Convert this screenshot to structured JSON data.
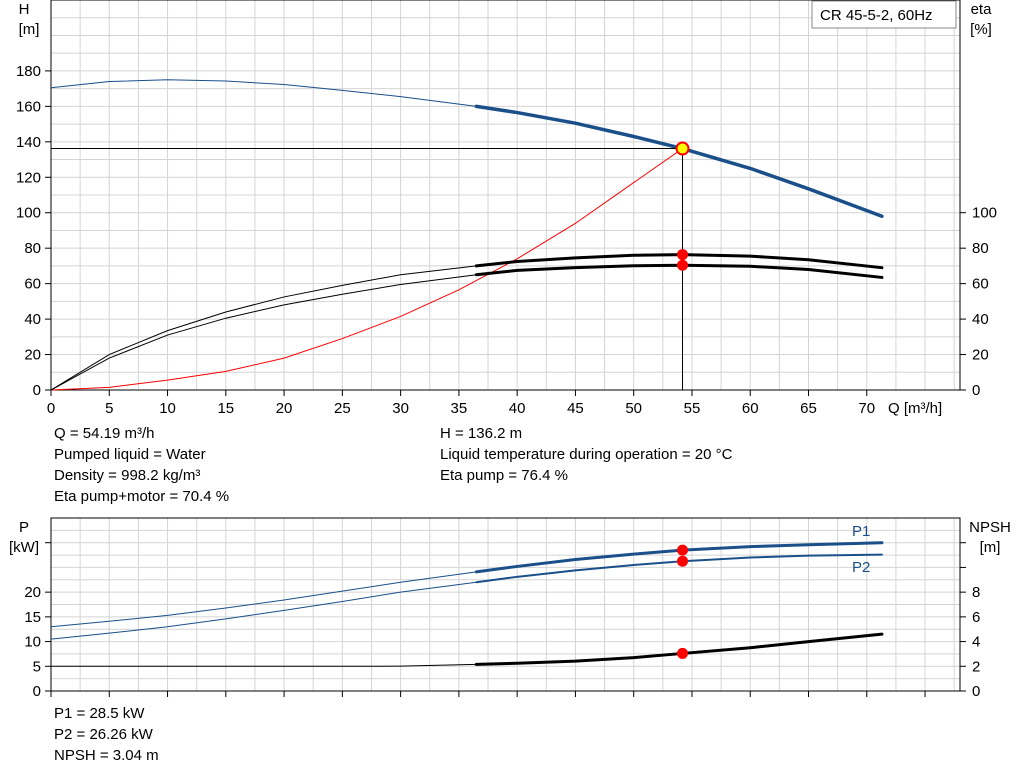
{
  "chart_data": [
    {
      "type": "line",
      "title_box": "CR 45-5-2, 60Hz",
      "x_axis": {
        "label": "Q [m³/h]",
        "ticks": [
          0,
          5,
          10,
          15,
          20,
          25,
          30,
          35,
          40,
          45,
          50,
          55,
          60,
          65,
          70
        ],
        "range": [
          0,
          78
        ]
      },
      "y_left": {
        "label_top": "H",
        "label_unit": "[m]",
        "ticks": [
          0,
          20,
          40,
          60,
          80,
          100,
          120,
          140,
          160,
          180
        ],
        "range": [
          0,
          220
        ]
      },
      "y_right": {
        "label_top": "eta",
        "label_unit": "[%]",
        "ticks": [
          0,
          20,
          40,
          60,
          80,
          100
        ],
        "range": [
          0,
          220
        ]
      },
      "series": [
        {
          "key": "head",
          "color": "#1a4f8a",
          "x": [
            0,
            5,
            10,
            15,
            20,
            25,
            30,
            36.5,
            40,
            45,
            50,
            54.19,
            60,
            65,
            71.3
          ],
          "y": [
            170.5,
            174,
            175,
            174.3,
            172.3,
            169,
            165.5,
            160,
            156.5,
            150.5,
            143,
            136.2,
            125,
            113.5,
            98
          ]
        },
        {
          "key": "eta_pump",
          "color": "#000000",
          "x": [
            0,
            5,
            10,
            15,
            20,
            25,
            30,
            36.5,
            40,
            45,
            50,
            54.19,
            60,
            65,
            71.3
          ],
          "y": [
            0,
            20,
            33.5,
            44,
            52.5,
            59,
            65,
            70,
            72.5,
            74.5,
            76,
            76.4,
            75.5,
            73.5,
            69
          ]
        },
        {
          "key": "eta_total",
          "color": "#000000",
          "x": [
            0,
            5,
            10,
            15,
            20,
            25,
            30,
            36.5,
            40,
            45,
            50,
            54.19,
            60,
            65,
            71.3
          ],
          "y": [
            0,
            18,
            31,
            40.5,
            48,
            54,
            59.5,
            65,
            67.5,
            69,
            70.1,
            70.4,
            69.8,
            68,
            63.5
          ]
        },
        {
          "key": "system",
          "color": "#ff0000",
          "x": [
            0,
            5,
            10,
            15,
            20,
            25,
            30,
            35,
            40,
            45,
            50,
            54.19
          ],
          "y": [
            0,
            1.5,
            5.6,
            10.5,
            18,
            29,
            41.5,
            56.5,
            74,
            94,
            117,
            136.2
          ]
        }
      ],
      "duty_point": {
        "q": 54.19,
        "h": 136.2,
        "eta_pump": 76.4,
        "eta_total": 70.4
      }
    },
    {
      "type": "line",
      "x_axis": {
        "range": [
          0,
          78
        ]
      },
      "y_left": {
        "label_top": "P",
        "label_unit": "[kW]",
        "ticks": [
          0,
          5,
          10,
          15,
          20
        ],
        "range": [
          0,
          35
        ]
      },
      "y_right": {
        "label_top": "NPSH",
        "label_unit": "[m]",
        "ticks": [
          0,
          2,
          4,
          6,
          8
        ],
        "range": [
          0,
          14
        ]
      },
      "series": [
        {
          "key": "p1",
          "name": "P1",
          "color": "#1a4f8a",
          "x": [
            0,
            5,
            10,
            15,
            20,
            25,
            30,
            36.5,
            40,
            45,
            50,
            54.19,
            60,
            65,
            71.3
          ],
          "y": [
            13,
            14.1,
            15.3,
            16.8,
            18.4,
            20.2,
            22,
            24.1,
            25.2,
            26.6,
            27.7,
            28.5,
            29.2,
            29.6,
            30
          ]
        },
        {
          "key": "p2",
          "name": "P2",
          "color": "#1a4f8a",
          "x": [
            0,
            5,
            10,
            15,
            20,
            25,
            30,
            36.5,
            40,
            45,
            50,
            54.19,
            60,
            65,
            71.3
          ],
          "y": [
            10.5,
            11.7,
            13,
            14.6,
            16.3,
            18.1,
            20,
            22,
            23.1,
            24.4,
            25.5,
            26.26,
            27,
            27.4,
            27.6
          ]
        },
        {
          "key": "npsh",
          "color": "#000000",
          "x": [
            0,
            5,
            10,
            15,
            20,
            25,
            30,
            36.5,
            40,
            45,
            50,
            54.19,
            60,
            65,
            71.3
          ],
          "y": [
            2.0,
            2.0,
            2.0,
            2.0,
            2.0,
            2.0,
            2.01,
            2.15,
            2.25,
            2.42,
            2.7,
            3.04,
            3.5,
            4.0,
            4.6
          ]
        }
      ],
      "duty_point": {
        "q": 54.19,
        "p1": 28.5,
        "p2": 26.26,
        "npsh": 3.04
      }
    }
  ],
  "info_upper_left": [
    "Q = 54.19 m³/h",
    "Pumped liquid = Water",
    "Density = 998.2 kg/m³",
    "Eta pump+motor = 70.4 %"
  ],
  "info_upper_right": [
    "H = 136.2 m",
    "Liquid temperature during operation = 20 °C",
    "Eta pump = 76.4 %"
  ],
  "info_lower": [
    "P1 = 28.5 kW",
    "P2 = 26.26 kW",
    "NPSH = 3.04 m"
  ]
}
